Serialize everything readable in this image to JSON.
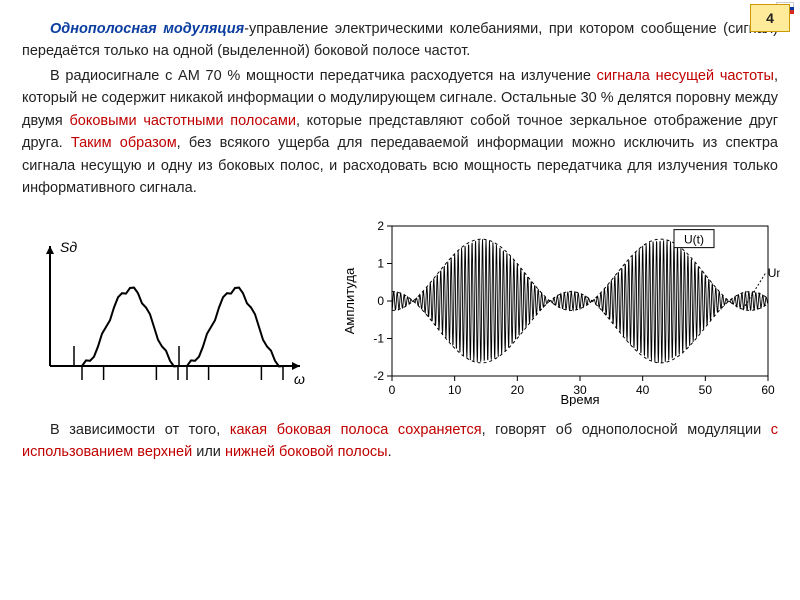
{
  "badge": {
    "number": "4"
  },
  "paragraphs": {
    "p1_term": "Однополосная модуляция",
    "p1_rest": "-управление электрическими колебаниями, при котором сообщение (сигнал) передаётся только на одной (выделенной) боковой полосе частот.",
    "p2_a": "В радиосигнале с АМ 70 % мощности передатчика расходуется на излучение ",
    "p2_b": "сигнала несущей частоты",
    "p2_c": ", который не содержит никакой информации о модулирующем сигнале. Остальные 30 % делятся поровну между двумя ",
    "p2_d": "боковыми частотными полосами",
    "p2_e": ", которые представляют собой точное зеркальное отображение друг друга. ",
    "p2_f": "Таким образом",
    "p2_g": ", без всякого ущерба для передаваемой информации можно исключить из спектра сигнала несущую и одну из боковых полос, и расходовать всю мощность передатчика для излучения только информативного сигнала.",
    "p3_a": "В зависимости от того, ",
    "p3_b": "какая боковая полоса сохраняется",
    "p3_c": ", говорят об однополосной модуляции ",
    "p3_d": "с использованием верхней",
    "p3_e": " или ",
    "p3_f": "нижней боковой полосы",
    "p3_g": "."
  },
  "fig_left": {
    "ylabel": "Sд",
    "xlabel": "ω",
    "stroke": "#000000",
    "arrow_color": "#000000",
    "line_width": 2
  },
  "fig_right": {
    "type": "modulated-wave",
    "xlim": [
      0,
      60
    ],
    "ylim": [
      -2,
      2
    ],
    "xticks": [
      0,
      10,
      20,
      30,
      40,
      50,
      60
    ],
    "yticks": [
      -2,
      -1,
      0,
      1,
      2
    ],
    "xlabel": "Время",
    "ylabel": "Амплитуда",
    "carrier_freq": 1.8,
    "mod_freq": 0.035,
    "base_amp": 0.7,
    "mod_depth": 0.95,
    "ut_label": "U(t)",
    "um_label": "Um",
    "wave_color": "#000000",
    "envelope_dash": "3,3",
    "axis_color": "#000000",
    "grid_color": "#000000",
    "label_fontsize": 13,
    "tick_fontsize": 12
  }
}
